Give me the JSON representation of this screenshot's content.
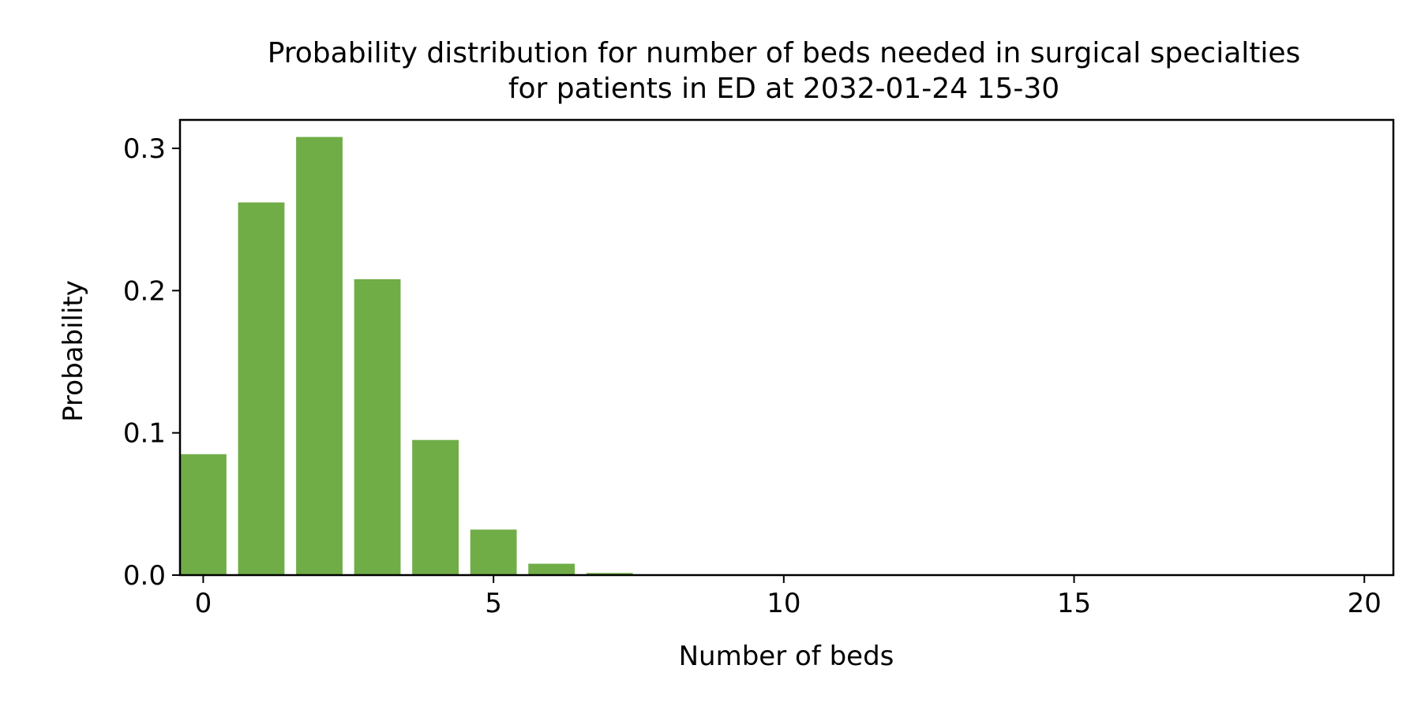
{
  "chart_data": {
    "type": "bar",
    "title": "Probability distribution for number of beds needed in surgical specialties",
    "subtitle": "for patients in ED at 2032-01-24 15-30",
    "xlabel": "Number of beds",
    "ylabel": "Probability",
    "x": [
      0,
      1,
      2,
      3,
      4,
      5,
      6,
      7,
      8,
      9,
      10,
      11,
      12,
      13,
      14,
      15,
      16,
      17,
      18,
      19,
      20
    ],
    "values": [
      0.085,
      0.262,
      0.308,
      0.208,
      0.095,
      0.032,
      0.008,
      0.0015,
      0.0002,
      0,
      0,
      0,
      0,
      0,
      0,
      0,
      0,
      0,
      0,
      0,
      0
    ],
    "xlim": [
      -0.4,
      20.5
    ],
    "ylim": [
      0,
      0.32
    ],
    "xticks": [
      0,
      5,
      10,
      15,
      20
    ],
    "yticks": [
      0.0,
      0.1,
      0.2,
      0.3
    ],
    "xtick_labels": [
      "0",
      "5",
      "10",
      "15",
      "20"
    ],
    "ytick_labels": [
      "0.0",
      "0.1",
      "0.2",
      "0.3"
    ],
    "bar_color": "#70ad47",
    "grid": false,
    "legend": false
  }
}
